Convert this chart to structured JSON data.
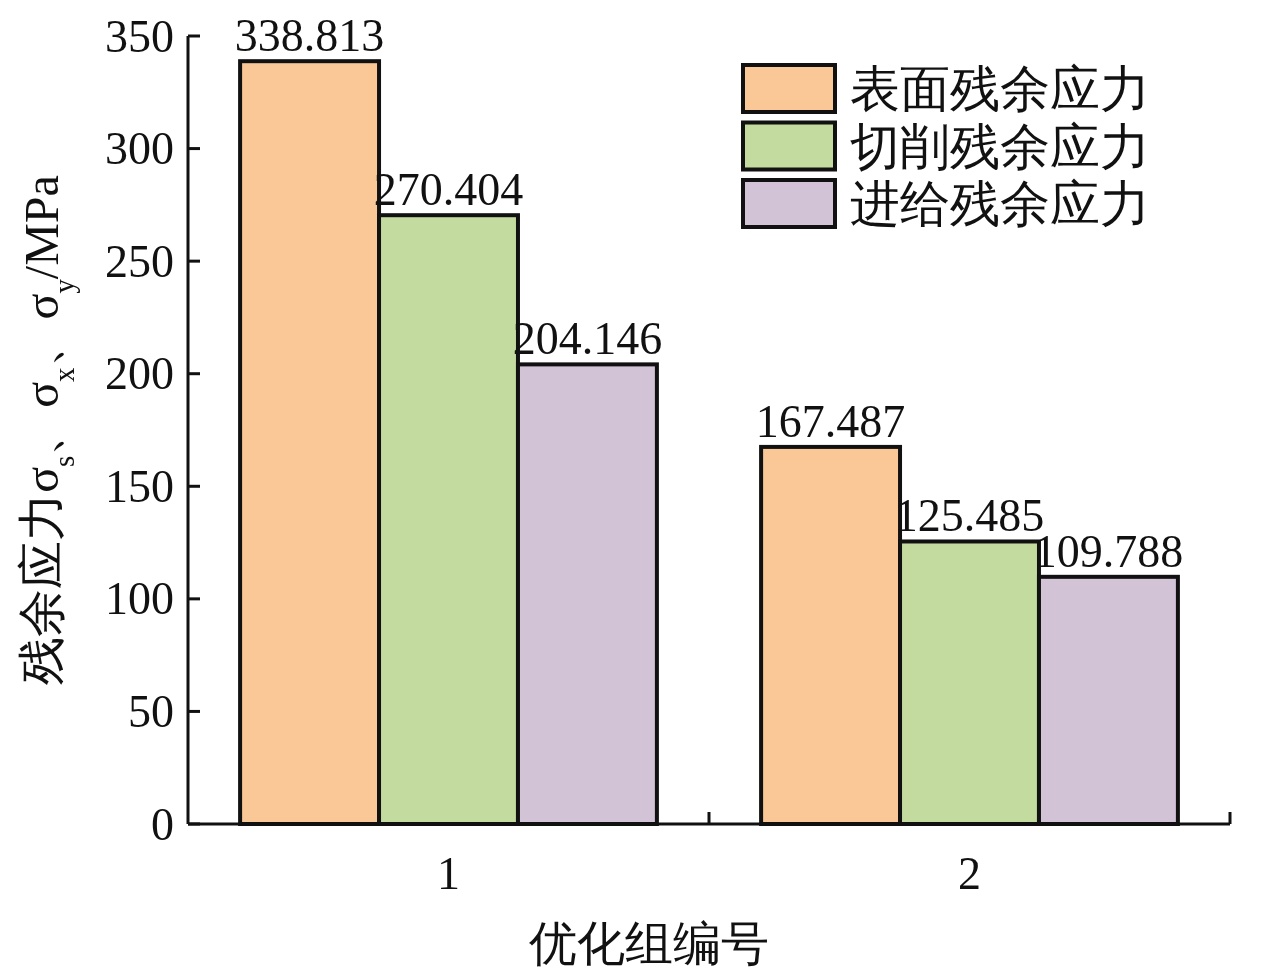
{
  "chart_data": {
    "type": "bar",
    "xlabel": "优化组编号",
    "ylabel": "残余应力σ$_{s}$、σ$_{x}$、σ$_{y}$/MPa",
    "categories": [
      "1",
      "2"
    ],
    "series": [
      {
        "name": "表面残余应力",
        "color": "#f9c896",
        "values": [
          338.813,
          167.487
        ]
      },
      {
        "name": "切削残余应力",
        "color": "#c4dba0",
        "values": [
          270.404,
          125.485
        ]
      },
      {
        "name": "进给残余应力",
        "color": "#d3c3d6",
        "values": [
          204.146,
          109.788
        ]
      }
    ],
    "ylim": [
      0,
      350
    ],
    "yticks": [
      0,
      50,
      100,
      150,
      200,
      250,
      300,
      350
    ],
    "data_labels": true,
    "legend": "top right",
    "grid": false
  }
}
